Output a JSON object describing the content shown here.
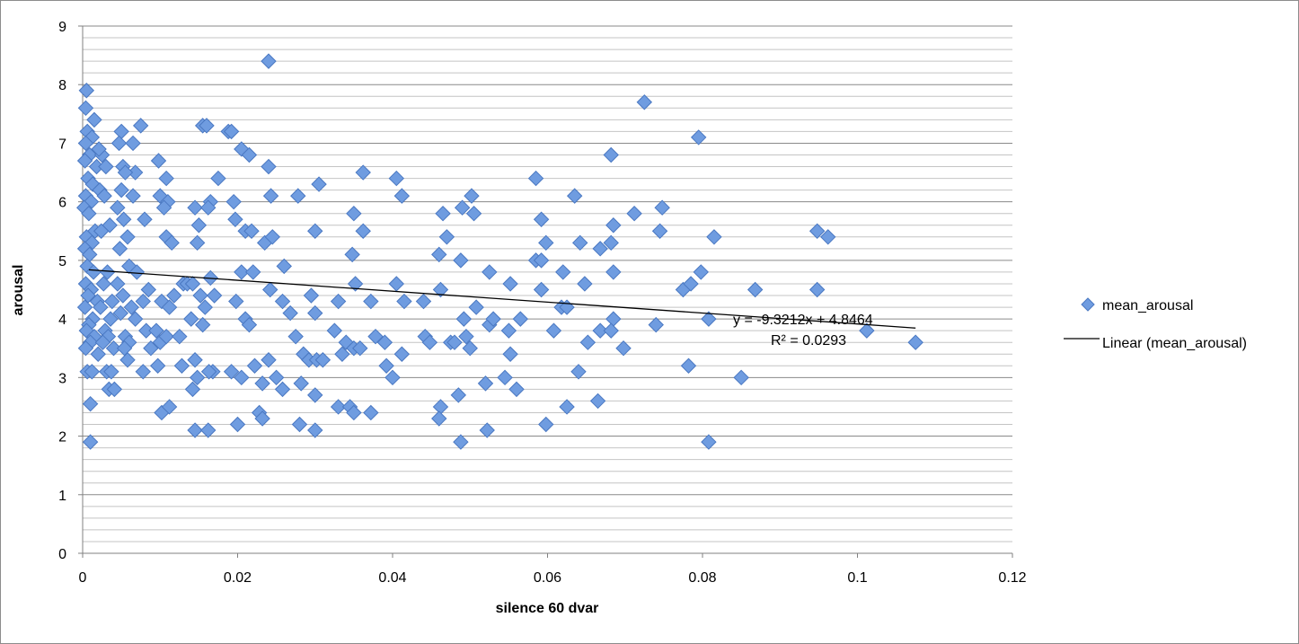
{
  "chart_data": {
    "type": "scatter",
    "title": "",
    "xlabel": "silence 60 dvar",
    "ylabel": "arousal",
    "xlim": [
      0,
      0.12
    ],
    "ylim": [
      0,
      9
    ],
    "x_ticks": [
      "0",
      "0.02",
      "0.04",
      "0.06",
      "0.08",
      "0.1",
      "0.12"
    ],
    "y_ticks": [
      "0",
      "1",
      "2",
      "3",
      "4",
      "5",
      "6",
      "7",
      "8",
      "9"
    ],
    "x_tick_values": [
      0,
      0.02,
      0.04,
      0.06,
      0.08,
      0.1,
      0.12
    ],
    "y_tick_values": [
      0,
      1,
      2,
      3,
      4,
      5,
      6,
      7,
      8,
      9
    ],
    "minor_grid_step": 0.2,
    "grid": "horizontal",
    "legend_position": "right",
    "series": [
      {
        "name": "mean_arousal",
        "marker": "diamond",
        "color": "#6f9ce0",
        "points": [
          [
            0.0005,
            7.9
          ],
          [
            0.0004,
            7.6
          ],
          [
            0.0015,
            7.4
          ],
          [
            0.0006,
            7.2
          ],
          [
            0.0012,
            7.1
          ],
          [
            0.0004,
            7.0
          ],
          [
            0.0009,
            6.8
          ],
          [
            0.0003,
            6.7
          ],
          [
            0.0018,
            6.6
          ],
          [
            0.0007,
            6.4
          ],
          [
            0.0013,
            6.3
          ],
          [
            0.0004,
            6.1
          ],
          [
            0.0011,
            6.0
          ],
          [
            0.0002,
            5.9
          ],
          [
            0.0008,
            5.8
          ],
          [
            0.0016,
            5.5
          ],
          [
            0.0005,
            5.4
          ],
          [
            0.0012,
            5.3
          ],
          [
            0.0003,
            5.2
          ],
          [
            0.0009,
            5.1
          ],
          [
            0.0006,
            4.9
          ],
          [
            0.0014,
            4.8
          ],
          [
            0.0004,
            4.6
          ],
          [
            0.0011,
            4.5
          ],
          [
            0.0007,
            4.4
          ],
          [
            0.0019,
            4.3
          ],
          [
            0.0003,
            4.2
          ],
          [
            0.0013,
            4.0
          ],
          [
            0.0008,
            3.9
          ],
          [
            0.0005,
            3.8
          ],
          [
            0.0015,
            3.7
          ],
          [
            0.001,
            3.6
          ],
          [
            0.0004,
            3.5
          ],
          [
            0.002,
            3.4
          ],
          [
            0.0006,
            3.1
          ],
          [
            0.0012,
            3.1
          ],
          [
            0.001,
            2.55
          ],
          [
            0.001,
            1.9
          ],
          [
            0.0025,
            6.8
          ],
          [
            0.003,
            6.6
          ],
          [
            0.0022,
            6.2
          ],
          [
            0.0028,
            6.1
          ],
          [
            0.0035,
            5.6
          ],
          [
            0.0024,
            5.5
          ],
          [
            0.0032,
            4.8
          ],
          [
            0.0027,
            4.6
          ],
          [
            0.0038,
            4.3
          ],
          [
            0.0023,
            4.2
          ],
          [
            0.0036,
            4.0
          ],
          [
            0.0029,
            3.8
          ],
          [
            0.0033,
            3.7
          ],
          [
            0.0026,
            3.6
          ],
          [
            0.004,
            3.5
          ],
          [
            0.0031,
            3.1
          ],
          [
            0.0037,
            3.1
          ],
          [
            0.0034,
            2.8
          ],
          [
            0.0041,
            2.8
          ],
          [
            0.0021,
            6.9
          ],
          [
            0.005,
            7.2
          ],
          [
            0.0047,
            7.0
          ],
          [
            0.0052,
            6.6
          ],
          [
            0.0065,
            7.0
          ],
          [
            0.0068,
            6.5
          ],
          [
            0.0055,
            6.5
          ],
          [
            0.005,
            6.2
          ],
          [
            0.0065,
            6.1
          ],
          [
            0.0045,
            5.9
          ],
          [
            0.0053,
            5.7
          ],
          [
            0.0058,
            5.4
          ],
          [
            0.0048,
            5.2
          ],
          [
            0.006,
            4.9
          ],
          [
            0.007,
            4.8
          ],
          [
            0.0045,
            4.6
          ],
          [
            0.0052,
            4.4
          ],
          [
            0.0063,
            4.2
          ],
          [
            0.0049,
            4.1
          ],
          [
            0.0068,
            4.0
          ],
          [
            0.0055,
            3.7
          ],
          [
            0.006,
            3.6
          ],
          [
            0.0058,
            3.3
          ],
          [
            0.0054,
            3.5
          ],
          [
            0.0075,
            7.3
          ],
          [
            0.008,
            5.7
          ],
          [
            0.0078,
            4.3
          ],
          [
            0.0082,
            3.8
          ],
          [
            0.0085,
            4.5
          ],
          [
            0.0088,
            3.5
          ],
          [
            0.0078,
            3.1
          ],
          [
            0.0098,
            6.7
          ],
          [
            0.0108,
            6.4
          ],
          [
            0.01,
            6.1
          ],
          [
            0.011,
            6.0
          ],
          [
            0.0105,
            5.9
          ],
          [
            0.0108,
            5.4
          ],
          [
            0.0115,
            5.3
          ],
          [
            0.0102,
            4.3
          ],
          [
            0.0112,
            4.2
          ],
          [
            0.0118,
            4.4
          ],
          [
            0.0095,
            3.8
          ],
          [
            0.01,
            3.6
          ],
          [
            0.0108,
            3.7
          ],
          [
            0.0097,
            3.2
          ],
          [
            0.0102,
            2.4
          ],
          [
            0.0112,
            2.5
          ],
          [
            0.0125,
            3.7
          ],
          [
            0.013,
            4.6
          ],
          [
            0.0128,
            3.2
          ],
          [
            0.0135,
            4.6
          ],
          [
            0.0145,
            5.9
          ],
          [
            0.015,
            5.6
          ],
          [
            0.0148,
            5.3
          ],
          [
            0.0142,
            4.6
          ],
          [
            0.0155,
            7.3
          ],
          [
            0.016,
            7.3
          ],
          [
            0.0165,
            6.0
          ],
          [
            0.0162,
            5.9
          ],
          [
            0.0152,
            4.4
          ],
          [
            0.0158,
            4.2
          ],
          [
            0.014,
            4.0
          ],
          [
            0.0155,
            3.9
          ],
          [
            0.0145,
            3.3
          ],
          [
            0.0148,
            3.0
          ],
          [
            0.0142,
            2.8
          ],
          [
            0.0145,
            2.1
          ],
          [
            0.0165,
            4.7
          ],
          [
            0.017,
            4.4
          ],
          [
            0.0168,
            3.1
          ],
          [
            0.0163,
            3.1
          ],
          [
            0.0162,
            2.1
          ],
          [
            0.0175,
            6.4
          ],
          [
            0.0188,
            7.2
          ],
          [
            0.0192,
            7.2
          ],
          [
            0.0195,
            6.0
          ],
          [
            0.0197,
            5.7
          ],
          [
            0.0205,
            6.9
          ],
          [
            0.0215,
            6.8
          ],
          [
            0.021,
            5.5
          ],
          [
            0.0218,
            5.5
          ],
          [
            0.0205,
            4.8
          ],
          [
            0.022,
            4.8
          ],
          [
            0.0198,
            4.3
          ],
          [
            0.021,
            4.0
          ],
          [
            0.0215,
            3.9
          ],
          [
            0.0192,
            3.1
          ],
          [
            0.0205,
            3.0
          ],
          [
            0.0222,
            3.2
          ],
          [
            0.02,
            2.2
          ],
          [
            0.0228,
            2.4
          ],
          [
            0.024,
            8.4
          ],
          [
            0.024,
            6.6
          ],
          [
            0.0243,
            6.1
          ],
          [
            0.0235,
            5.3
          ],
          [
            0.0245,
            5.4
          ],
          [
            0.0242,
            4.5
          ],
          [
            0.0232,
            2.9
          ],
          [
            0.024,
            3.3
          ],
          [
            0.0232,
            2.3
          ],
          [
            0.026,
            4.9
          ],
          [
            0.0258,
            4.3
          ],
          [
            0.0268,
            4.1
          ],
          [
            0.025,
            3.0
          ],
          [
            0.0258,
            2.8
          ],
          [
            0.0275,
            3.7
          ],
          [
            0.0278,
            6.1
          ],
          [
            0.0282,
            2.9
          ],
          [
            0.028,
            2.2
          ],
          [
            0.0285,
            3.4
          ],
          [
            0.0292,
            3.3
          ],
          [
            0.0295,
            4.4
          ],
          [
            0.03,
            5.5
          ],
          [
            0.0305,
            6.3
          ],
          [
            0.03,
            4.1
          ],
          [
            0.0302,
            3.3
          ],
          [
            0.031,
            3.3
          ],
          [
            0.03,
            2.7
          ],
          [
            0.03,
            2.1
          ],
          [
            0.0325,
            3.8
          ],
          [
            0.033,
            4.3
          ],
          [
            0.033,
            2.5
          ],
          [
            0.0335,
            3.4
          ],
          [
            0.034,
            3.6
          ],
          [
            0.0345,
            2.5
          ],
          [
            0.035,
            5.8
          ],
          [
            0.0348,
            5.1
          ],
          [
            0.0352,
            4.6
          ],
          [
            0.035,
            3.5
          ],
          [
            0.0358,
            3.5
          ],
          [
            0.035,
            2.4
          ],
          [
            0.0362,
            6.5
          ],
          [
            0.0362,
            5.5
          ],
          [
            0.0372,
            4.3
          ],
          [
            0.0378,
            3.7
          ],
          [
            0.0372,
            2.4
          ],
          [
            0.039,
            3.6
          ],
          [
            0.0392,
            3.2
          ],
          [
            0.04,
            3.0
          ],
          [
            0.0405,
            6.4
          ],
          [
            0.0412,
            6.1
          ],
          [
            0.0405,
            4.6
          ],
          [
            0.0412,
            3.4
          ],
          [
            0.0415,
            4.3
          ],
          [
            0.044,
            4.3
          ],
          [
            0.0442,
            3.7
          ],
          [
            0.0448,
            3.6
          ],
          [
            0.046,
            5.1
          ],
          [
            0.0462,
            4.5
          ],
          [
            0.0462,
            2.5
          ],
          [
            0.046,
            2.3
          ],
          [
            0.0465,
            5.8
          ],
          [
            0.047,
            5.4
          ],
          [
            0.0475,
            3.6
          ],
          [
            0.048,
            3.6
          ],
          [
            0.0485,
            2.7
          ],
          [
            0.0488,
            5.0
          ],
          [
            0.049,
            5.9
          ],
          [
            0.0492,
            4.0
          ],
          [
            0.0495,
            3.7
          ],
          [
            0.05,
            3.5
          ],
          [
            0.0488,
            1.9
          ],
          [
            0.0502,
            6.1
          ],
          [
            0.0505,
            5.8
          ],
          [
            0.0508,
            4.2
          ],
          [
            0.052,
            2.9
          ],
          [
            0.0522,
            2.1
          ],
          [
            0.0525,
            4.8
          ],
          [
            0.0525,
            3.9
          ],
          [
            0.053,
            4.0
          ],
          [
            0.0545,
            3.0
          ],
          [
            0.055,
            3.8
          ],
          [
            0.0552,
            4.6
          ],
          [
            0.0552,
            3.4
          ],
          [
            0.056,
            2.8
          ],
          [
            0.0565,
            4.0
          ],
          [
            0.0585,
            6.4
          ],
          [
            0.0585,
            5.0
          ],
          [
            0.0592,
            5.0
          ],
          [
            0.0592,
            5.7
          ],
          [
            0.0598,
            5.3
          ],
          [
            0.0592,
            4.5
          ],
          [
            0.0598,
            2.2
          ],
          [
            0.0608,
            3.8
          ],
          [
            0.062,
            4.8
          ],
          [
            0.0618,
            4.2
          ],
          [
            0.0625,
            4.2
          ],
          [
            0.0625,
            2.5
          ],
          [
            0.0635,
            6.1
          ],
          [
            0.064,
            3.1
          ],
          [
            0.0642,
            5.3
          ],
          [
            0.0648,
            4.6
          ],
          [
            0.0652,
            3.6
          ],
          [
            0.0665,
            2.6
          ],
          [
            0.0668,
            5.2
          ],
          [
            0.0668,
            3.8
          ],
          [
            0.0682,
            6.8
          ],
          [
            0.0682,
            5.3
          ],
          [
            0.0685,
            5.6
          ],
          [
            0.0685,
            4.8
          ],
          [
            0.0685,
            4.0
          ],
          [
            0.0682,
            3.8
          ],
          [
            0.0698,
            3.5
          ],
          [
            0.0712,
            5.8
          ],
          [
            0.0725,
            7.7
          ],
          [
            0.074,
            3.9
          ],
          [
            0.0745,
            5.5
          ],
          [
            0.0748,
            5.9
          ],
          [
            0.0775,
            4.5
          ],
          [
            0.0785,
            4.6
          ],
          [
            0.0798,
            4.8
          ],
          [
            0.0782,
            3.2
          ],
          [
            0.0795,
            7.1
          ],
          [
            0.0808,
            4.0
          ],
          [
            0.0815,
            5.4
          ],
          [
            0.0808,
            1.9
          ],
          [
            0.085,
            3.0
          ],
          [
            0.0868,
            4.5
          ],
          [
            0.0948,
            5.5
          ],
          [
            0.0948,
            4.5
          ],
          [
            0.0962,
            5.4
          ],
          [
            0.1012,
            3.8
          ],
          [
            0.1075,
            3.6
          ]
        ]
      }
    ],
    "trendline": {
      "name": "Linear (mean_arousal)",
      "slope": -9.3212,
      "intercept": 4.8464,
      "x_range": [
        0.0008,
        0.1075
      ],
      "color": "#000000"
    },
    "annotations": {
      "equation": "y = -9.3212x + 4.8464",
      "r_squared": "R² = 0.0293"
    }
  }
}
